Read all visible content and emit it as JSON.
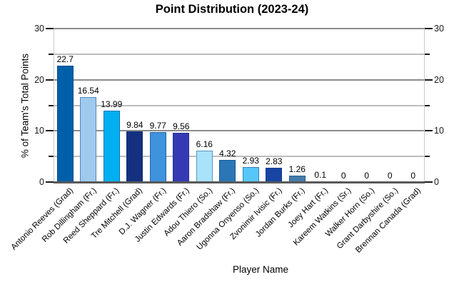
{
  "title": "Point Distribution (2023-24)",
  "chart_data": {
    "type": "bar",
    "title": "Point Distribution (2023-24)",
    "xlabel": "Player Name",
    "ylabel": "% of Team's Total Points",
    "ylim": [
      0,
      30
    ],
    "yticks_major": [
      0,
      10,
      20,
      30
    ],
    "yticks_minor": [
      5,
      15,
      25
    ],
    "grid": true,
    "legend": false,
    "categories": [
      "Antonio Reeves (Grad)",
      "Rob Dillingham (Fr.)",
      "Reed Sheppard (Fr.)",
      "Tre Mitchell (Grad)",
      "D.J. Wagner (Fr.)",
      "Justin Edwards (Fr.)",
      "Adou Thiero (So.)",
      "Aaron Bradshaw (Fr.)",
      "Ugonna Onyenso (So.)",
      "Zvonimir Ivisic (Fr.)",
      "Jordan Burks (Fr.)",
      "Joey Hart (Fr.)",
      "Kareem Watkins (Sr.)",
      "Walker Horn (So.)",
      "Grant Darbyshire (So.)",
      "Brennan Canada (Grad)"
    ],
    "values": [
      22.7,
      16.54,
      13.99,
      9.84,
      9.77,
      9.56,
      6.16,
      4.32,
      2.93,
      2.83,
      1.26,
      0.1,
      0,
      0,
      0,
      0
    ],
    "value_labels": [
      "22.7",
      "16.54",
      "13.99",
      "9.84",
      "9.77",
      "9.56",
      "6.16",
      "4.32",
      "2.93",
      "2.83",
      "1.26",
      "0.1",
      "0",
      "0",
      "0",
      "0"
    ],
    "bar_colors": [
      "#005fa9",
      "#9fcaed",
      "#00aff0",
      "#14317f",
      "#3f92dc",
      "#3639b5",
      "#a9e3f9",
      "#2b76b5",
      "#57c7f8",
      "#1844a2",
      "#447dab",
      "#a5c6dc",
      null,
      null,
      null,
      null
    ],
    "colors": {
      "grid_major": "#8c8c8c",
      "grid_minor": "#bdbdbd",
      "axis": "#595959",
      "tick": "#1a1a1a",
      "text": "#000000"
    }
  }
}
